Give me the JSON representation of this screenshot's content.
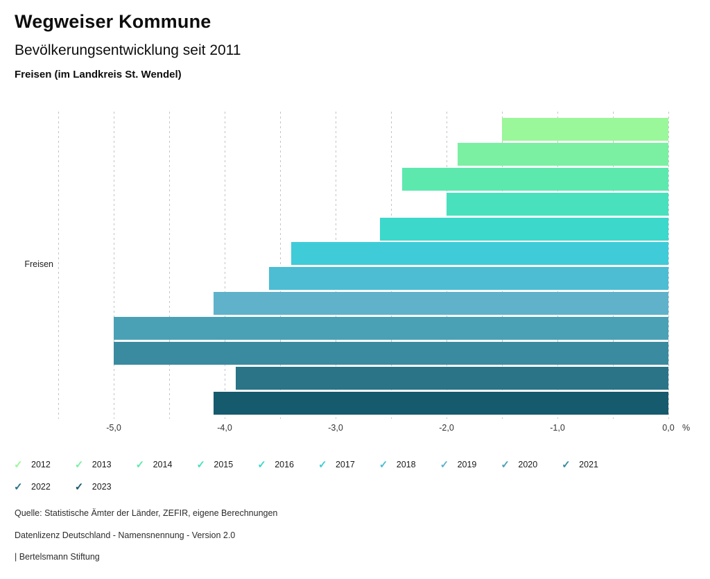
{
  "header": {
    "title": "Wegweiser Kommune",
    "subtitle": "Bevölkerungsentwicklung seit 2011",
    "location": "Freisen (im Landkreis St. Wendel)"
  },
  "chart_data": {
    "type": "bar",
    "orientation": "horizontal",
    "title": "Bevölkerungsentwicklung seit 2011",
    "row_label": "Freisen",
    "unit": "%",
    "categories": [
      "2012",
      "2013",
      "2014",
      "2015",
      "2016",
      "2017",
      "2018",
      "2019",
      "2020",
      "2021",
      "2022",
      "2023"
    ],
    "values": [
      -1.5,
      -1.9,
      -2.4,
      -2.0,
      -2.6,
      -3.4,
      -3.6,
      -4.1,
      -5.0,
      -5.0,
      -3.9,
      -4.1
    ],
    "colors": [
      "#9af79a",
      "#7bf0a3",
      "#5de9ae",
      "#49e0bd",
      "#3cd8cc",
      "#40cbd8",
      "#4cbdd3",
      "#5fb2ca",
      "#4aa1b6",
      "#3a8ba0",
      "#2b7487",
      "#165a6e"
    ],
    "xlim": [
      -5.5,
      0
    ],
    "grid": true,
    "grid_step": 0.5,
    "gridline_color": "#c3c3c3",
    "x_ticks": [
      {
        "label": "-5,0",
        "value": -5
      },
      {
        "label": "-4,0",
        "value": -4
      },
      {
        "label": "-3,0",
        "value": -3
      },
      {
        "label": "-2,0",
        "value": -2
      },
      {
        "label": "-1,0",
        "value": -1
      },
      {
        "label": "0,0",
        "value": 0
      }
    ],
    "legend_position": "bottom",
    "legend_icon": "check"
  },
  "footer": {
    "source": "Quelle: Statistische Ämter der Länder, ZEFIR, eigene Berechnungen",
    "license": "Datenlizenz Deutschland - Namensnennung - Version 2.0",
    "attribution": "| Bertelsmann Stiftung"
  }
}
